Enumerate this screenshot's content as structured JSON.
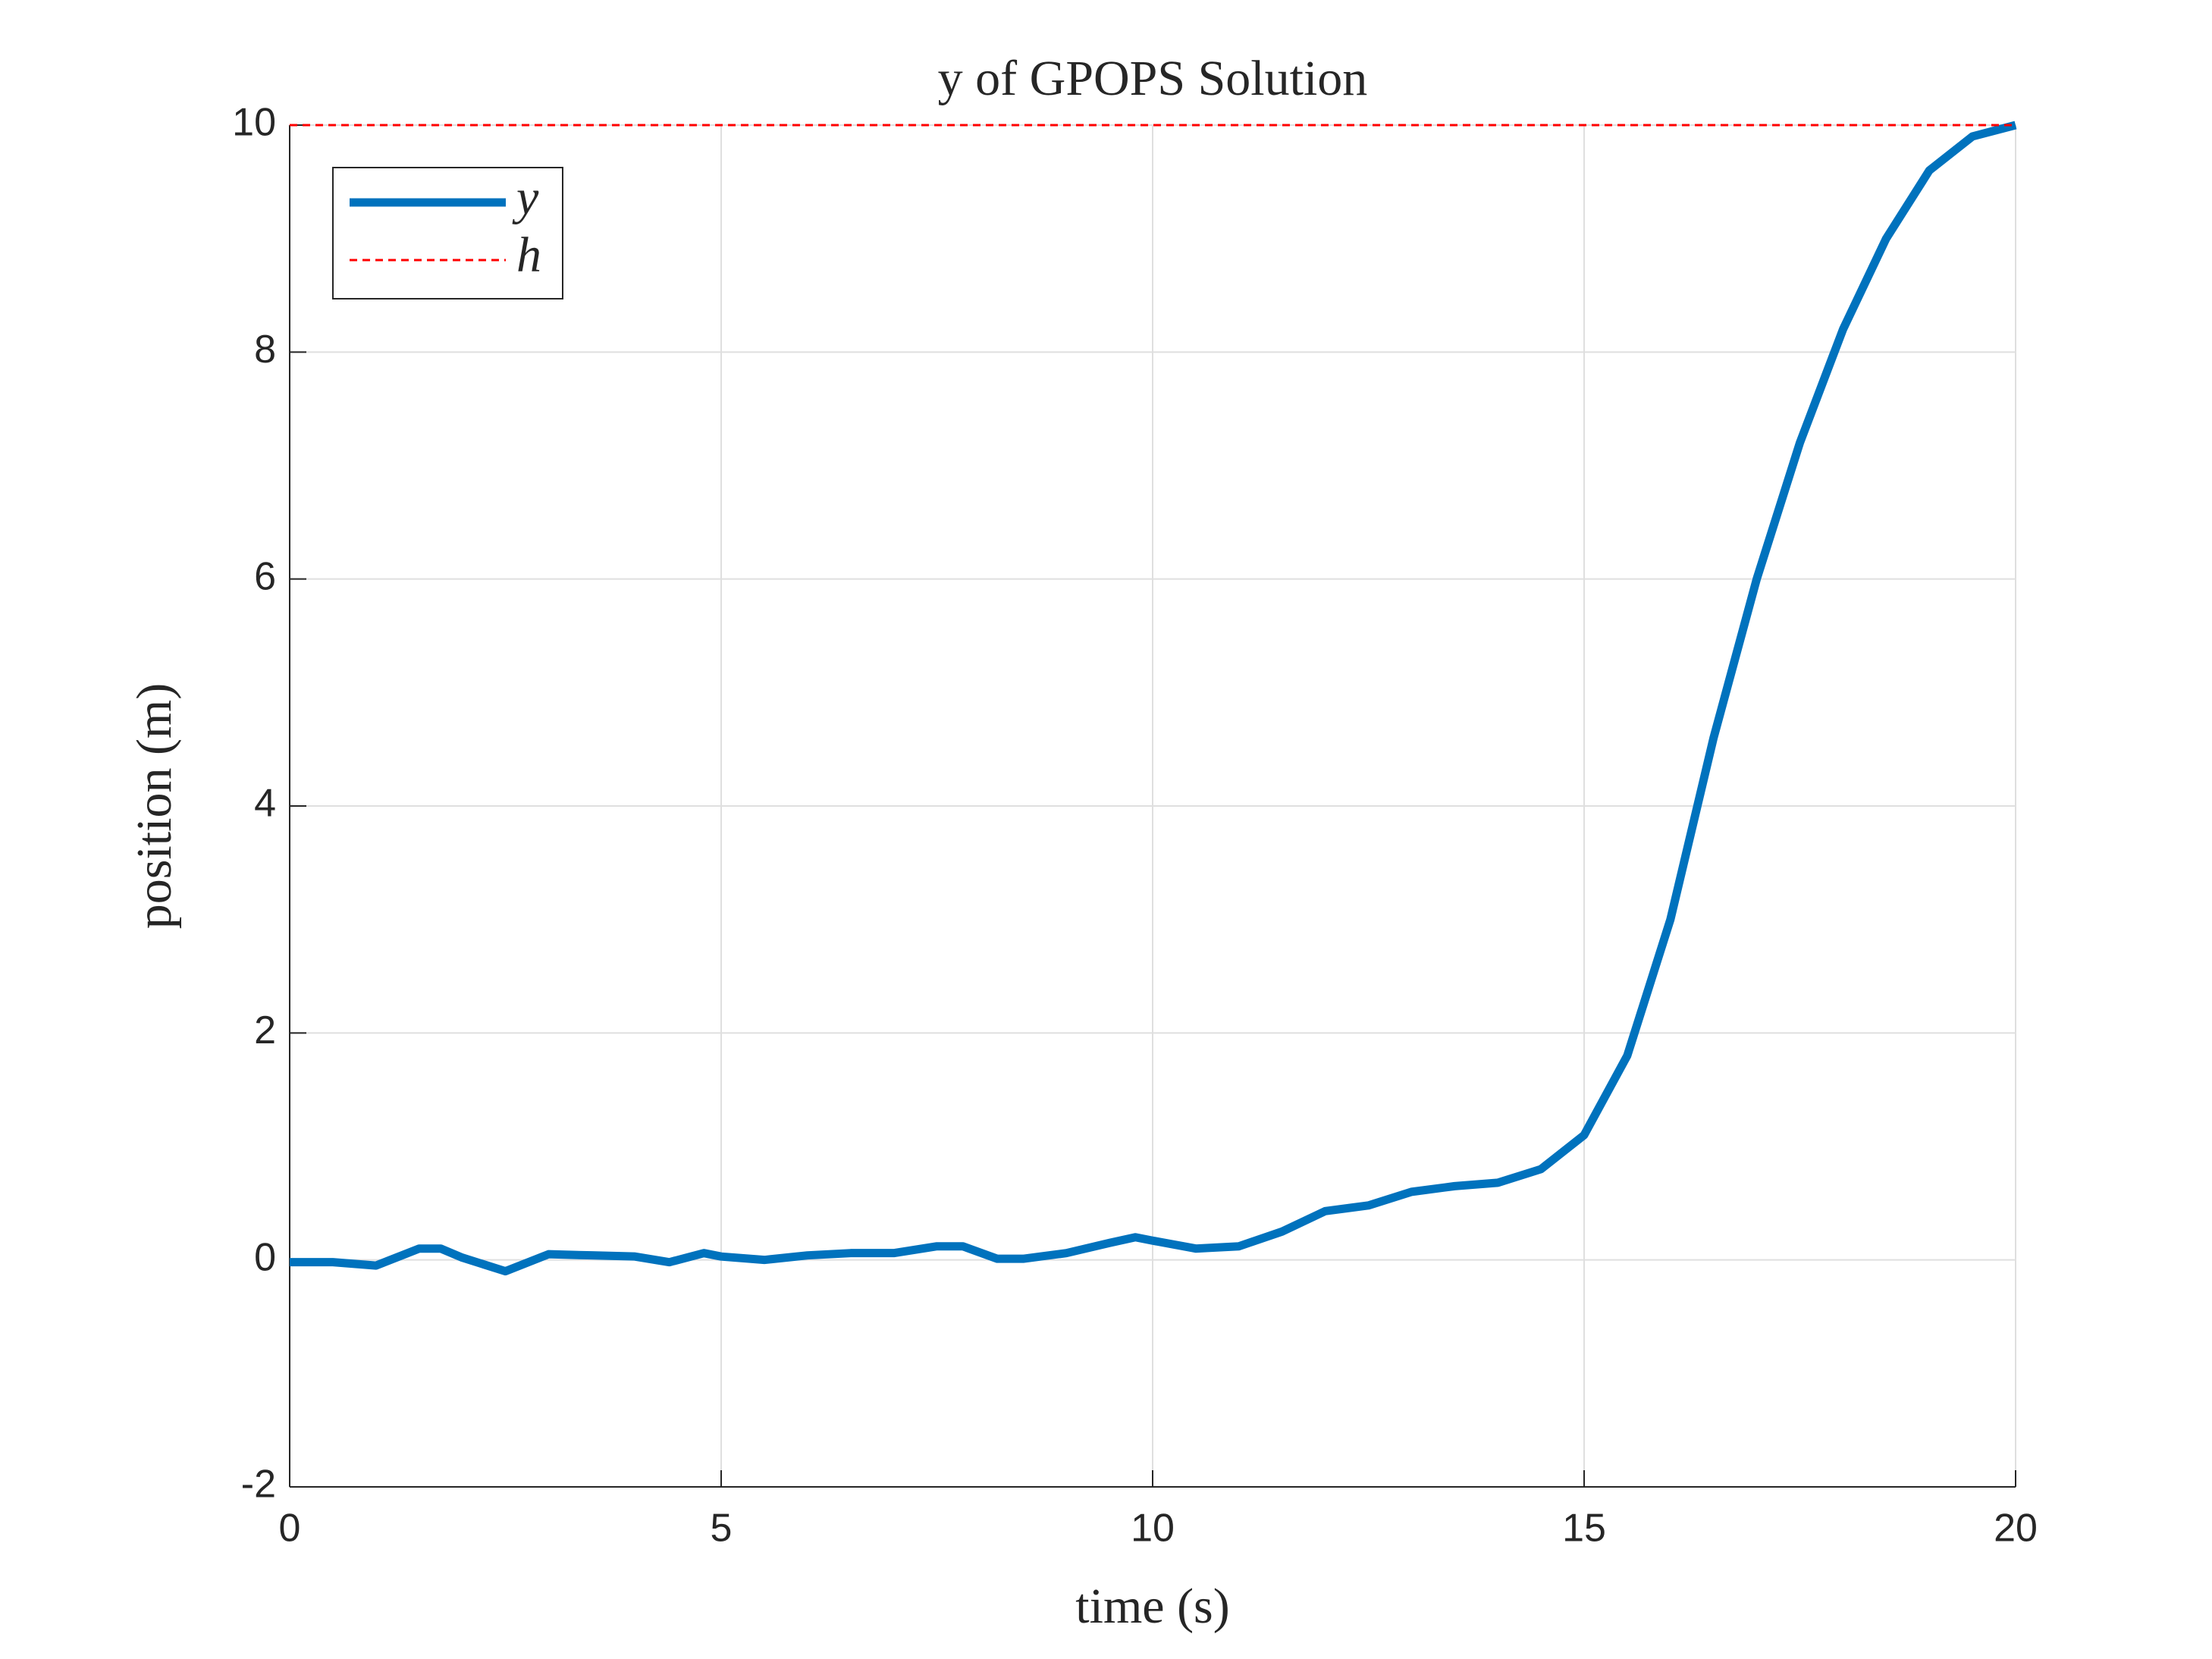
{
  "chart_data": {
    "type": "line",
    "title": "y of GPOPS Solution",
    "xlabel": "time (s)",
    "ylabel": "position (m)",
    "x": [
      0,
      0.5,
      1,
      1.5,
      1.75,
      2,
      2.5,
      3,
      3.5,
      4,
      4.4,
      4.8,
      5,
      5.5,
      6,
      6.5,
      7,
      7.5,
      7.8,
      8.2,
      8.5,
      9,
      9.5,
      9.8,
      10,
      10.5,
      11,
      11.5,
      12,
      12.5,
      13,
      13.5,
      14,
      14.5,
      15,
      15.5,
      16,
      16.5,
      17,
      17.5,
      18,
      18.5,
      19,
      19.5,
      20
    ],
    "series": [
      {
        "name": "y",
        "color": "#0072bd",
        "values": [
          -0.02,
          -0.02,
          -0.05,
          0.1,
          0.1,
          0.02,
          -0.1,
          0.05,
          0.04,
          0.03,
          -0.02,
          0.06,
          0.03,
          0.0,
          0.04,
          0.06,
          0.06,
          0.12,
          0.12,
          0.01,
          0.01,
          0.06,
          0.15,
          0.2,
          0.17,
          0.1,
          0.12,
          0.25,
          0.43,
          0.48,
          0.6,
          0.65,
          0.68,
          0.8,
          1.1,
          1.8,
          3.0,
          4.6,
          6.0,
          7.2,
          8.2,
          9.0,
          9.6,
          9.9,
          10
        ]
      },
      {
        "name": "h",
        "color": "#ff0000",
        "dashed": true,
        "x": [
          0,
          20
        ],
        "values": [
          10,
          10
        ]
      }
    ],
    "xlim": [
      0,
      20
    ],
    "xticks": [
      0,
      5,
      10,
      15,
      20
    ],
    "ylim": [
      -2,
      10
    ],
    "yticks": [
      -2,
      0,
      2,
      4,
      6,
      8,
      10
    ],
    "grid": true,
    "legend": "upper left"
  }
}
